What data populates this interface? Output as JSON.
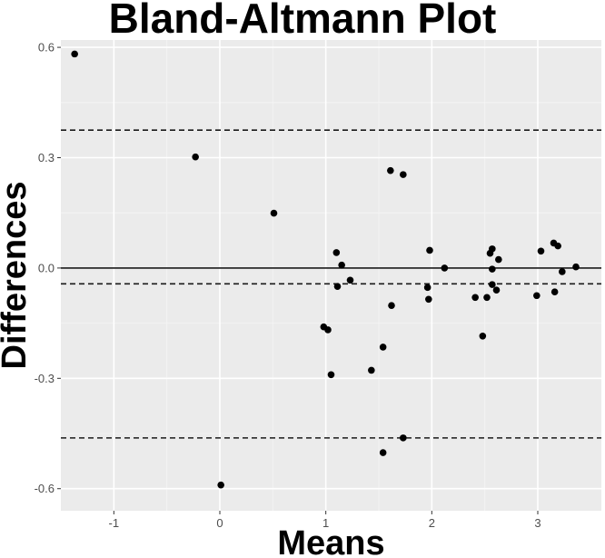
{
  "chart_data": {
    "type": "scatter",
    "title": "Bland-Altmann Plot",
    "xlabel": "Means",
    "ylabel": "Differences",
    "xlim": [
      -1.5,
      3.6
    ],
    "ylim": [
      -0.66,
      0.62
    ],
    "x_ticks": [
      {
        "value": -1,
        "label": "-1"
      },
      {
        "value": 0,
        "label": "0"
      },
      {
        "value": 1,
        "label": "1"
      },
      {
        "value": 2,
        "label": "2"
      },
      {
        "value": 3,
        "label": "3"
      }
    ],
    "y_ticks": [
      {
        "value": 0.6,
        "label": "0.6"
      },
      {
        "value": 0.3,
        "label": "0.3"
      },
      {
        "value": 0.0,
        "label": "0.0"
      },
      {
        "value": -0.3,
        "label": "-0.3"
      },
      {
        "value": -0.6,
        "label": "-0.6"
      }
    ],
    "grid": true,
    "reference_lines": [
      {
        "value": 0.0,
        "style": "solid"
      },
      {
        "value": 0.375,
        "style": "dashed"
      },
      {
        "value": -0.043,
        "style": "dashed"
      },
      {
        "value": -0.462,
        "style": "dashed"
      }
    ],
    "points": [
      {
        "x": -1.37,
        "y": 0.582
      },
      {
        "x": -0.23,
        "y": 0.302
      },
      {
        "x": 0.51,
        "y": 0.149
      },
      {
        "x": 0.01,
        "y": -0.59
      },
      {
        "x": 0.98,
        "y": -0.16
      },
      {
        "x": 1.02,
        "y": -0.168
      },
      {
        "x": 1.05,
        "y": -0.29
      },
      {
        "x": 1.1,
        "y": 0.042
      },
      {
        "x": 1.11,
        "y": -0.05
      },
      {
        "x": 1.15,
        "y": 0.008
      },
      {
        "x": 1.23,
        "y": -0.033
      },
      {
        "x": 1.43,
        "y": -0.278
      },
      {
        "x": 1.54,
        "y": -0.215
      },
      {
        "x": 1.54,
        "y": -0.502
      },
      {
        "x": 1.61,
        "y": 0.265
      },
      {
        "x": 1.62,
        "y": -0.102
      },
      {
        "x": 1.73,
        "y": 0.254
      },
      {
        "x": 1.73,
        "y": -0.462
      },
      {
        "x": 1.96,
        "y": -0.053
      },
      {
        "x": 1.97,
        "y": -0.085
      },
      {
        "x": 1.98,
        "y": 0.048
      },
      {
        "x": 2.12,
        "y": 0.0
      },
      {
        "x": 2.41,
        "y": -0.08
      },
      {
        "x": 2.48,
        "y": -0.185
      },
      {
        "x": 2.52,
        "y": -0.08
      },
      {
        "x": 2.55,
        "y": 0.04
      },
      {
        "x": 2.57,
        "y": 0.052
      },
      {
        "x": 2.57,
        "y": -0.003
      },
      {
        "x": 2.57,
        "y": -0.045
      },
      {
        "x": 2.61,
        "y": -0.06
      },
      {
        "x": 2.63,
        "y": 0.023
      },
      {
        "x": 2.99,
        "y": -0.075
      },
      {
        "x": 3.03,
        "y": 0.046
      },
      {
        "x": 3.15,
        "y": 0.068
      },
      {
        "x": 3.16,
        "y": -0.065
      },
      {
        "x": 3.19,
        "y": 0.06
      },
      {
        "x": 3.23,
        "y": -0.01
      },
      {
        "x": 3.36,
        "y": 0.003
      }
    ]
  }
}
